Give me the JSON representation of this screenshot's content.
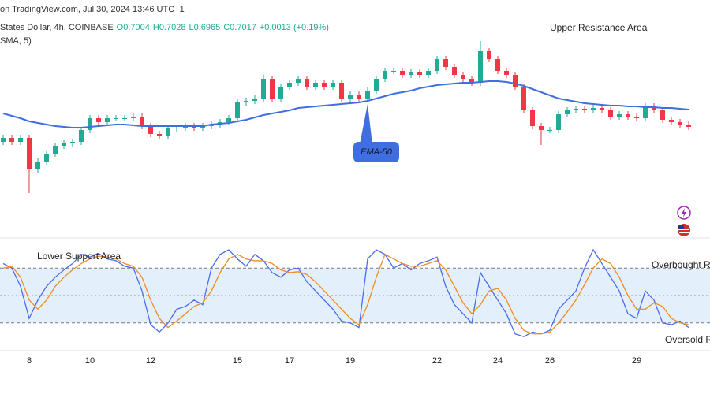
{
  "header": {
    "source": "on TradingView.com, Jul 30, 2024 13:46 UTC+1",
    "symbol": "States Dollar, 4h, COINBASE",
    "ohlc": [
      "O0.7004",
      "H0.7028",
      "L0.6965",
      "C0.7017",
      "+0.0013 (+0.19%)"
    ],
    "indicator": "SMA, 5)"
  },
  "chart_data": [
    {
      "type": "candlestick",
      "annotations": [
        "Upper Resistance Area"
      ],
      "categories": [
        null,
        null,
        null,
        "8",
        null,
        null,
        null,
        null,
        null,
        null,
        "10",
        null,
        null,
        null,
        null,
        null,
        null,
        "12",
        null,
        null,
        null,
        null,
        null,
        null,
        null,
        null,
        null,
        "15",
        null,
        null,
        null,
        null,
        null,
        "17",
        null,
        null,
        null,
        null,
        null,
        null,
        "19",
        null,
        null,
        null,
        null,
        null,
        null,
        null,
        null,
        null,
        "22",
        null,
        null,
        null,
        null,
        null,
        null,
        "24",
        null,
        null,
        null,
        null,
        null,
        "26",
        null,
        null,
        null,
        null,
        null,
        null,
        null,
        null,
        null,
        "29",
        null,
        null,
        null,
        null,
        null,
        null
      ],
      "ylim": [
        0.6878,
        0.7158
      ],
      "up_color": "#22ab94",
      "down_color": "#f23645",
      "open": [
        0.6998,
        0.7003,
        0.6998,
        0.7003,
        0.6963,
        0.6973,
        0.6983,
        0.6993,
        0.6996,
        0.6998,
        0.7013,
        0.7028,
        0.7023,
        0.7028,
        0.7028,
        0.7028,
        0.703,
        0.7018,
        0.7008,
        0.7006,
        0.7015,
        0.7016,
        0.7018,
        0.7016,
        0.7018,
        0.702,
        0.7023,
        0.7028,
        0.7048,
        0.705,
        0.7053,
        0.7078,
        0.7053,
        0.7068,
        0.7073,
        0.7078,
        0.7068,
        0.7073,
        0.7068,
        0.7073,
        0.7053,
        0.7058,
        0.7053,
        0.7063,
        0.7078,
        0.7088,
        0.7088,
        0.7083,
        0.7086,
        0.7083,
        0.7088,
        0.7103,
        0.7093,
        0.7083,
        0.7078,
        0.7073,
        0.7113,
        0.7103,
        0.7088,
        0.7083,
        0.7068,
        0.7038,
        0.7018,
        0.7013,
        0.7013,
        0.7033,
        0.7038,
        0.704,
        0.7038,
        0.7041,
        0.7038,
        0.703,
        0.7033,
        0.703,
        0.7028,
        0.7043,
        0.7038,
        0.7026,
        0.7023,
        0.702
      ],
      "high": [
        0.7007,
        0.7007,
        0.7007,
        0.7007,
        0.6977,
        0.6987,
        0.6997,
        0.7,
        0.7002,
        0.7017,
        0.7032,
        0.7032,
        0.7032,
        0.7032,
        0.7032,
        0.7034,
        0.7034,
        0.7022,
        0.7012,
        0.7019,
        0.702,
        0.7022,
        0.7022,
        0.7022,
        0.7024,
        0.7027,
        0.7032,
        0.7052,
        0.7054,
        0.7057,
        0.7083,
        0.7082,
        0.7072,
        0.7077,
        0.7082,
        0.7082,
        0.7077,
        0.7077,
        0.7077,
        0.7077,
        0.7062,
        0.7062,
        0.7067,
        0.7082,
        0.7092,
        0.7092,
        0.7092,
        0.709,
        0.709,
        0.7092,
        0.7107,
        0.7107,
        0.7097,
        0.7087,
        0.7082,
        0.7126,
        0.7117,
        0.7107,
        0.7092,
        0.7087,
        0.7072,
        0.7042,
        0.7022,
        0.7017,
        0.7037,
        0.7042,
        0.7044,
        0.7044,
        0.7045,
        0.7045,
        0.7042,
        0.7037,
        0.7037,
        0.7034,
        0.7047,
        0.7047,
        0.7042,
        0.703,
        0.7027,
        0.7024
      ],
      "low": [
        0.6994,
        0.6994,
        0.6994,
        0.6933,
        0.6959,
        0.6969,
        0.6979,
        0.6989,
        0.6992,
        0.6994,
        0.7009,
        0.7019,
        0.7019,
        0.7024,
        0.7024,
        0.7024,
        0.7014,
        0.7004,
        0.7002,
        0.7002,
        0.7011,
        0.7012,
        0.7012,
        0.7012,
        0.7014,
        0.7016,
        0.7019,
        0.7024,
        0.7044,
        0.7046,
        0.7049,
        0.7049,
        0.7049,
        0.7064,
        0.7069,
        0.7064,
        0.7064,
        0.7064,
        0.7064,
        0.7049,
        0.7049,
        0.7049,
        0.7049,
        0.7059,
        0.7074,
        0.7084,
        0.7079,
        0.7079,
        0.7079,
        0.7079,
        0.7084,
        0.7089,
        0.7079,
        0.7074,
        0.7069,
        0.7069,
        0.7099,
        0.7084,
        0.7079,
        0.7064,
        0.7034,
        0.7014,
        0.6994,
        0.7009,
        0.7009,
        0.7029,
        0.7034,
        0.7034,
        0.7034,
        0.7034,
        0.7026,
        0.7026,
        0.7026,
        0.7024,
        0.7024,
        0.7034,
        0.7022,
        0.7019,
        0.7016,
        0.7013
      ],
      "close": [
        0.7003,
        0.6998,
        0.7003,
        0.6963,
        0.6973,
        0.6983,
        0.6993,
        0.6996,
        0.6998,
        0.7013,
        0.7028,
        0.7023,
        0.7028,
        0.7028,
        0.7028,
        0.703,
        0.7018,
        0.7008,
        0.7006,
        0.7015,
        0.7016,
        0.7018,
        0.7016,
        0.7018,
        0.702,
        0.7023,
        0.7028,
        0.7048,
        0.705,
        0.7053,
        0.7078,
        0.7053,
        0.7068,
        0.7073,
        0.7078,
        0.7068,
        0.7073,
        0.7068,
        0.7073,
        0.7053,
        0.7058,
        0.7053,
        0.7063,
        0.7078,
        0.7088,
        0.7088,
        0.7083,
        0.7086,
        0.7083,
        0.7088,
        0.7103,
        0.7093,
        0.7083,
        0.7078,
        0.7073,
        0.7113,
        0.7103,
        0.7088,
        0.7083,
        0.7068,
        0.7038,
        0.7018,
        0.7013,
        0.7013,
        0.7033,
        0.7038,
        0.704,
        0.7038,
        0.7041,
        0.7038,
        0.703,
        0.7033,
        0.703,
        0.7028,
        0.7043,
        0.7038,
        0.7026,
        0.7023,
        0.702,
        0.7017
      ],
      "overlay": {
        "label": "EMA-50",
        "color": "#3e6ee0",
        "values": [
          0.7034,
          0.7031,
          0.7028,
          0.7024,
          0.7022,
          0.702,
          0.7018,
          0.7017,
          0.7016,
          0.7016,
          0.7017,
          0.7018,
          0.7019,
          0.702,
          0.702,
          0.7019,
          0.7018,
          0.7018,
          0.7018,
          0.7018,
          0.7018,
          0.7018,
          0.7018,
          0.7018,
          0.702,
          0.7021,
          0.7022,
          0.7024,
          0.7026,
          0.7029,
          0.7032,
          0.7034,
          0.7036,
          0.7038,
          0.7041,
          0.7042,
          0.7043,
          0.7044,
          0.7045,
          0.7046,
          0.7047,
          0.7048,
          0.705,
          0.7053,
          0.7056,
          0.7059,
          0.7061,
          0.7063,
          0.7066,
          0.7068,
          0.707,
          0.7071,
          0.7072,
          0.7073,
          0.7073,
          0.7074,
          0.7075,
          0.7075,
          0.7074,
          0.7072,
          0.7069,
          0.7065,
          0.7061,
          0.7057,
          0.7053,
          0.7051,
          0.7049,
          0.7047,
          0.7046,
          0.7045,
          0.7044,
          0.7044,
          0.7043,
          0.7043,
          0.7042,
          0.7042,
          0.7041,
          0.7041,
          0.704,
          0.7039
        ]
      }
    },
    {
      "type": "line",
      "annotations": [
        "Lower Support Area",
        "Overbought R",
        "Oversold R"
      ],
      "ylim": [
        0,
        100
      ],
      "bands": [
        20,
        80
      ],
      "midline": 50,
      "band_color": "#e3f0fb",
      "series": [
        {
          "color": "#4a6cf0",
          "values": [
            85,
            80,
            60,
            25,
            45,
            60,
            70,
            78,
            85,
            95,
            92,
            96,
            90,
            88,
            82,
            80,
            55,
            18,
            10,
            20,
            35,
            38,
            45,
            40,
            80,
            95,
            100,
            90,
            82,
            95,
            88,
            75,
            70,
            78,
            80,
            65,
            55,
            45,
            35,
            22,
            20,
            15,
            90,
            100,
            95,
            80,
            85,
            78,
            85,
            88,
            92,
            60,
            40,
            30,
            20,
            75,
            60,
            45,
            30,
            8,
            5,
            10,
            8,
            12,
            35,
            45,
            55,
            80,
            100,
            85,
            70,
            55,
            30,
            25,
            55,
            45,
            20,
            18,
            22,
            15
          ]
        },
        {
          "color": "#f08a24",
          "values": [
            80,
            82,
            70,
            45,
            35,
            45,
            60,
            70,
            78,
            85,
            90,
            93,
            92,
            90,
            85,
            82,
            70,
            45,
            25,
            15,
            22,
            30,
            38,
            42,
            55,
            75,
            90,
            95,
            90,
            88,
            88,
            85,
            78,
            75,
            76,
            73,
            65,
            55,
            45,
            35,
            25,
            18,
            40,
            70,
            95,
            90,
            85,
            82,
            82,
            85,
            88,
            78,
            60,
            42,
            30,
            40,
            55,
            58,
            45,
            25,
            12,
            8,
            8,
            10,
            20,
            32,
            45,
            62,
            80,
            90,
            85,
            70,
            50,
            35,
            35,
            42,
            38,
            25,
            20,
            18
          ]
        }
      ]
    }
  ]
}
